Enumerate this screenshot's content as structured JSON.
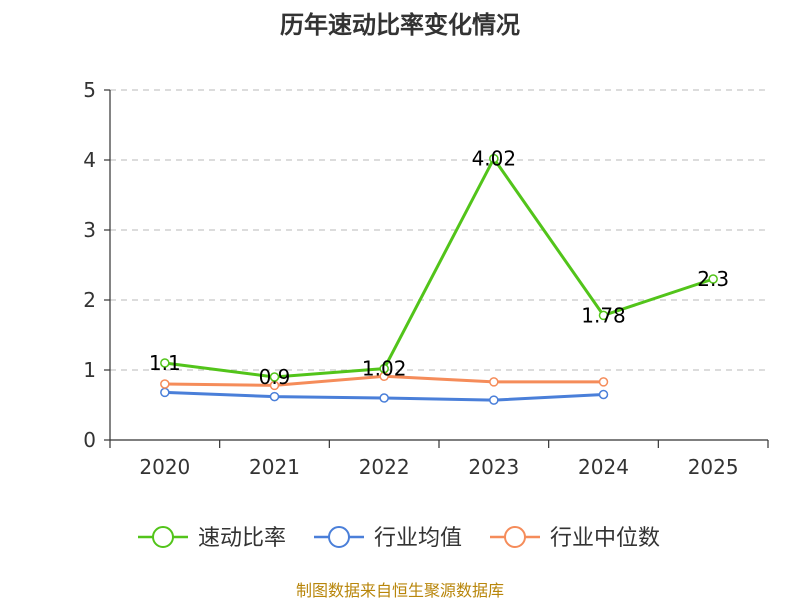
{
  "chart_data": {
    "type": "line",
    "title": "历年速动比率变化情况",
    "categories": [
      "2020",
      "2021",
      "2022",
      "2023",
      "2024",
      "2025"
    ],
    "ylim": [
      0,
      5
    ],
    "yticks": [
      "0",
      "1",
      "2",
      "3",
      "4",
      "5"
    ],
    "grid": true,
    "legend_position": "bottom",
    "series": [
      {
        "name": "速动比率",
        "color": "#52c41a",
        "values": [
          1.1,
          0.9,
          1.02,
          4.02,
          1.78,
          2.3
        ],
        "labels": [
          "1.1",
          "0.9",
          "1.02",
          "4.02",
          "1.78",
          "2.3"
        ]
      },
      {
        "name": "行业均值",
        "color": "#4a7fd9",
        "values": [
          0.68,
          0.62,
          0.6,
          0.57,
          0.65,
          null
        ],
        "labels": []
      },
      {
        "name": "行业中位数",
        "color": "#f58c5a",
        "values": [
          0.8,
          0.78,
          0.91,
          0.83,
          0.83,
          null
        ],
        "labels": []
      }
    ],
    "source": "制图数据来自恒生聚源数据库"
  }
}
